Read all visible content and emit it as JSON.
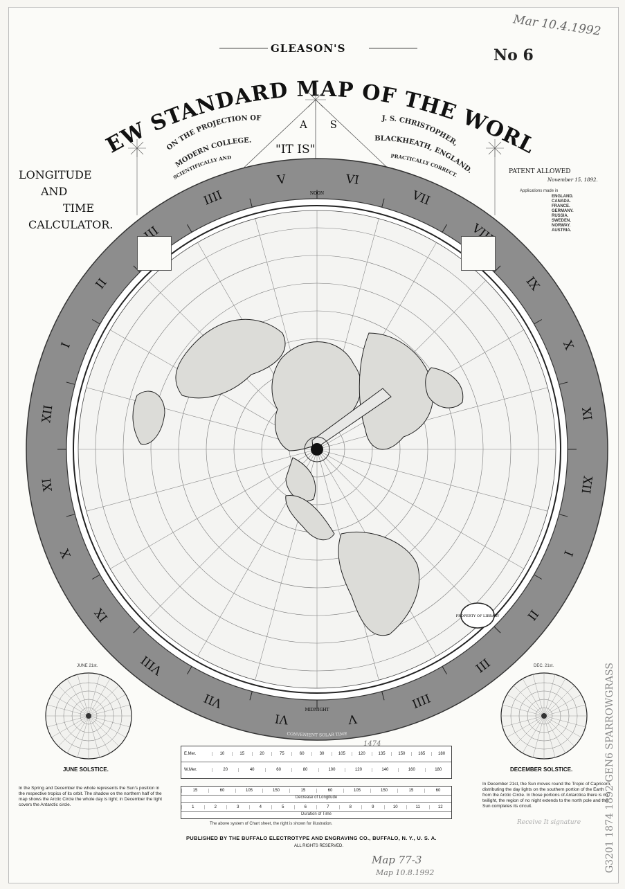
{
  "header": {
    "preamble": "GLEASON'S",
    "title": "NEW STANDARD MAP OF THE WORLD",
    "left_arc": [
      "ON THE PROJECTION OF",
      "MODERN COLLEGE.",
      "SCIENTIFICALLY AND"
    ],
    "right_arc": [
      "J. S. CHRISTOPHER,",
      "BLACKHEATH, ENGLAND.",
      "PRACTICALLY CORRECT."
    ],
    "center_as": "A S",
    "center_itis": "\"IT   IS\"",
    "handwritten_date": "Mar 10.4.1992",
    "stamp_number": "No 6"
  },
  "left_title": {
    "line1": "LONGITUDE",
    "line2": "AND",
    "line3": "TIME",
    "line4": "CALCULATOR."
  },
  "patent": {
    "line1": "PATENT ALLOWED",
    "line2": "November 15, 1892.",
    "applications": "Applications made in",
    "countries": [
      "ENGLAND.",
      "CANADA.",
      "FRANCE.",
      "GERMANY.",
      "RUSSIA.",
      "SWEDEN.",
      "NORWAY.",
      "AUSTRIA."
    ]
  },
  "dial": {
    "numerals": [
      "VI",
      "VII",
      "VIII",
      "IX",
      "X",
      "XI",
      "XII",
      "I",
      "II",
      "III",
      "IIII",
      "V",
      "VI",
      "VII",
      "VIII",
      "IX",
      "X",
      "XI",
      "XII",
      "I",
      "II",
      "III",
      "IIII",
      "V"
    ],
    "noon_label": "NOON",
    "midnight_label": "MIDNIGHT",
    "bottom_caption": "CONVENIENT SOLAR TIME"
  },
  "insets": {
    "left_title": "JUNE SOLSTICE.",
    "right_title": "DECEMBER SOLSTICE.",
    "left_small": "JUNE 21st.",
    "right_small": "DEC. 21st.",
    "left_text": "In the Spring and December the whole represents the Sun's position in the respective tropics of its orbit. The shadow on the northern half of the map shows the Arctic Circle the whole day is light; in December the light covers the Antarctic circle.",
    "right_text": "In December 21st, the Sun moves round the Tropic of Capricorn, distributing the day lights on the southern portion of the Earth from the Arctic Circle. In those portions of Antarctica there is no twilight, the region of no night extends to the north pole and the Sun completes its circuit."
  },
  "scales": {
    "row1_label": "E.Mer.",
    "row1": [
      "10",
      "15",
      "20",
      "75",
      "60",
      "30",
      "105",
      "120",
      "135",
      "150",
      "165",
      "180"
    ],
    "row2_label": "W.Mer.",
    "row2": [
      "20",
      "40",
      "60",
      "80",
      "100",
      "120",
      "140",
      "160",
      "180"
    ],
    "row3": [
      "15",
      "60",
      "105",
      "150",
      "15",
      "60",
      "105",
      "150",
      "15",
      "60"
    ],
    "row3_caption": "Decrease of Longitude",
    "row4": [
      "1",
      "2",
      "3",
      "4",
      "5",
      "6",
      "7",
      "8",
      "9",
      "10",
      "11",
      "12"
    ],
    "row4_caption": "Duration of Time",
    "handwritten_mark": "1474"
  },
  "footer": {
    "fine_print": "The above system of Chart sheet, the right is shown for illustration.",
    "publisher": "PUBLISHED BY THE BUFFALO ELECTROTYPE AND ENGRAVING CO., BUFFALO, N. Y., U. S. A.",
    "rights": "ALL RIGHTS RESERVED.",
    "handwritten_1": "Map 77-3",
    "handwritten_2": "Map 10.8.1992"
  },
  "side_marks": {
    "right_vertical": "G3201 1874 1892 GEN6  SPARROWGRASS",
    "signature_text": "Receive It signature"
  },
  "map_labels": {
    "library_stamp": "PROPERTY OF LIBRARY"
  }
}
